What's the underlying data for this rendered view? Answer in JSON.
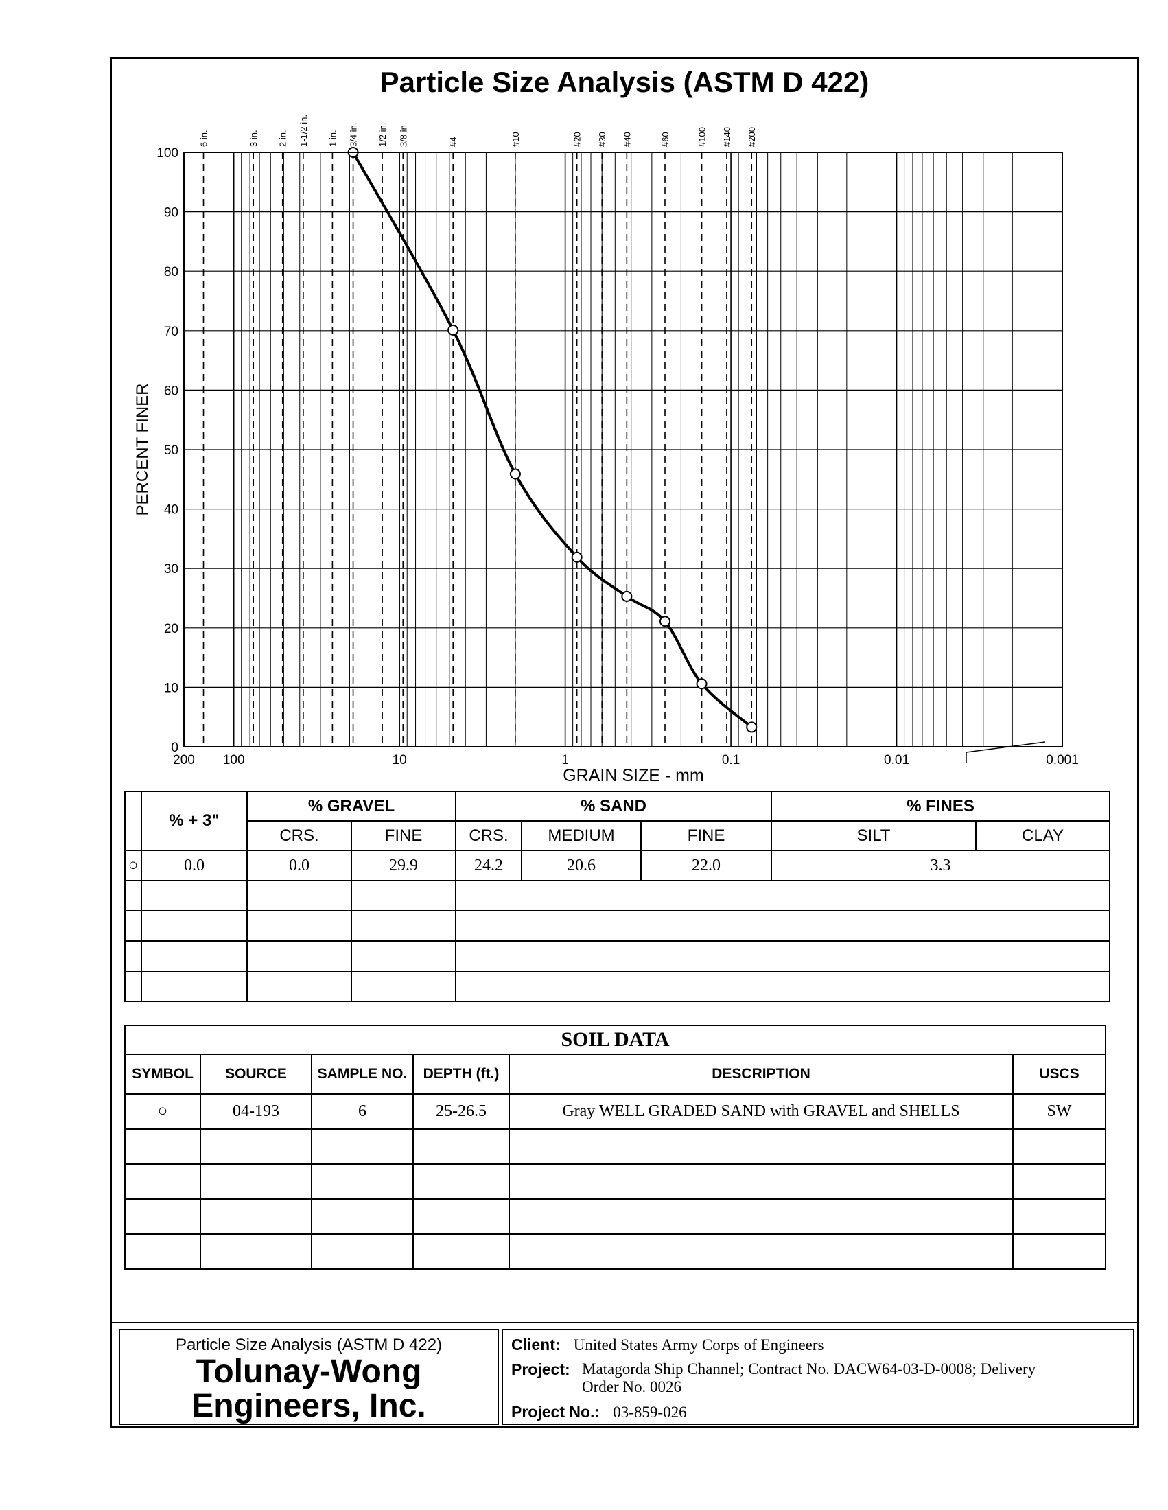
{
  "title": "Particle Size Analysis (ASTM D 422)",
  "chart_data": {
    "type": "line",
    "xlabel": "GRAIN SIZE - mm",
    "ylabel": "PERCENT FINER",
    "x_scale": "log",
    "xlim": [
      200,
      0.001
    ],
    "ylim": [
      0,
      100
    ],
    "x_ticks": [
      {
        "label": "200",
        "value": 200
      },
      {
        "label": "100",
        "value": 100
      },
      {
        "label": "10",
        "value": 10
      },
      {
        "label": "1",
        "value": 1
      },
      {
        "label": "0.1",
        "value": 0.1
      },
      {
        "label": "0.01",
        "value": 0.01
      },
      {
        "label": "0.001",
        "value": 0.001
      }
    ],
    "y_ticks": [
      0,
      10,
      20,
      30,
      40,
      50,
      60,
      70,
      80,
      90,
      100
    ],
    "sieves": [
      {
        "label": "6 in.",
        "mm": 152.4
      },
      {
        "label": "3 in.",
        "mm": 76.2
      },
      {
        "label": "2 in.",
        "mm": 50.8
      },
      {
        "label": "1-1/2 in.",
        "mm": 38.1
      },
      {
        "label": "1 in.",
        "mm": 25.4
      },
      {
        "label": "3/4 in.",
        "mm": 19.05
      },
      {
        "label": "1/2 in.",
        "mm": 12.7
      },
      {
        "label": "3/8 in.",
        "mm": 9.525
      },
      {
        "label": "#4",
        "mm": 4.75
      },
      {
        "label": "#10",
        "mm": 2.0
      },
      {
        "label": "#20",
        "mm": 0.85
      },
      {
        "label": "#30",
        "mm": 0.6
      },
      {
        "label": "#40",
        "mm": 0.425
      },
      {
        "label": "#60",
        "mm": 0.25
      },
      {
        "label": "#100",
        "mm": 0.15
      },
      {
        "label": "#140",
        "mm": 0.106
      },
      {
        "label": "#200",
        "mm": 0.075
      }
    ],
    "series": [
      {
        "marker": "open-circle",
        "x": [
          19.05,
          4.75,
          2.0,
          0.85,
          0.425,
          0.25,
          0.15,
          0.075
        ],
        "y": [
          100.0,
          70.1,
          45.9,
          31.9,
          25.3,
          21.1,
          10.6,
          3.3
        ]
      }
    ],
    "grid": true
  },
  "gradation_table": {
    "header_plus3": "% + 3\"",
    "header_gravel": "% GRAVEL",
    "header_sand": "% SAND",
    "header_fines": "% FINES",
    "sub_crs": "CRS.",
    "sub_fine": "FINE",
    "sub_crs2": "CRS.",
    "sub_medium": "MEDIUM",
    "sub_fine2": "FINE",
    "sub_silt": "SILT",
    "sub_clay": "CLAY",
    "row1": {
      "symbol": "○",
      "plus3": "0.0",
      "gravel_crs": "0.0",
      "gravel_fine": "29.9",
      "sand_crs": "24.2",
      "sand_medium": "20.6",
      "sand_fine": "22.0",
      "fines": "3.3"
    }
  },
  "soil_data": {
    "title": "SOIL DATA",
    "h_symbol": "SYMBOL",
    "h_source": "SOURCE",
    "h_sample": "SAMPLE NO.",
    "h_depth": "DEPTH (ft.)",
    "h_description": "DESCRIPTION",
    "h_uscs": "USCS",
    "row1": {
      "symbol": "○",
      "source": "04-193",
      "sample": "6",
      "depth": "25-26.5",
      "description": "Gray WELL GRADED SAND with GRAVEL and SHELLS",
      "uscs": "SW"
    }
  },
  "footer": {
    "subtitle": "Particle Size Analysis (ASTM D 422)",
    "company_line1": "Tolunay-Wong",
    "company_line2": "Engineers, Inc.",
    "client_label": "Client:",
    "client": "United States Army Corps of Engineers",
    "project_label": "Project:",
    "project_line1": "Matagorda Ship Channel; Contract No. DACW64-03-D-0008;  Delivery",
    "project_line2": "Order No. 0026",
    "project_no_label": "Project No.:",
    "project_no": "03-859-026"
  }
}
